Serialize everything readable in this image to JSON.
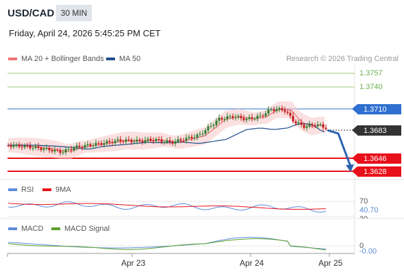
{
  "header": {
    "symbol": "USD/CAD",
    "timeframe": "30 MIN",
    "datetime": "Friday, April 24, 2026 5:45:25 PM CET",
    "research": "Research © 2026 Trading Central"
  },
  "legend": {
    "ma20": "MA 20 + Bollinger Bands",
    "ma50": "MA 50",
    "rsi": "RSI",
    "rsi_ma": "9MA",
    "macd": "MACD",
    "macd_signal": "MACD Signal"
  },
  "levels": {
    "r2": "1.3757",
    "r1": "1.3740",
    "pivot": "1.3710",
    "last": "1.3683",
    "s1": "1.3646",
    "s2": "1.3628"
  },
  "rsi_panel": {
    "level_70": "70",
    "value": "40.70",
    "level_30": "30"
  },
  "macd_panel": {
    "zero": "0",
    "value": "-0.00"
  },
  "x_axis": [
    "Apr 23",
    "Apr 24",
    "Apr 25"
  ],
  "colors": {
    "green": "#6ab04c",
    "blue": "#2f6fd0",
    "red": "#e8101a",
    "dark": "#333333",
    "ma20": "#f07070",
    "ma50": "#1f4e8c",
    "arrow": "#2a62b0",
    "candle_up": "#2a7a2a",
    "candle_down": "#c01818"
  }
}
